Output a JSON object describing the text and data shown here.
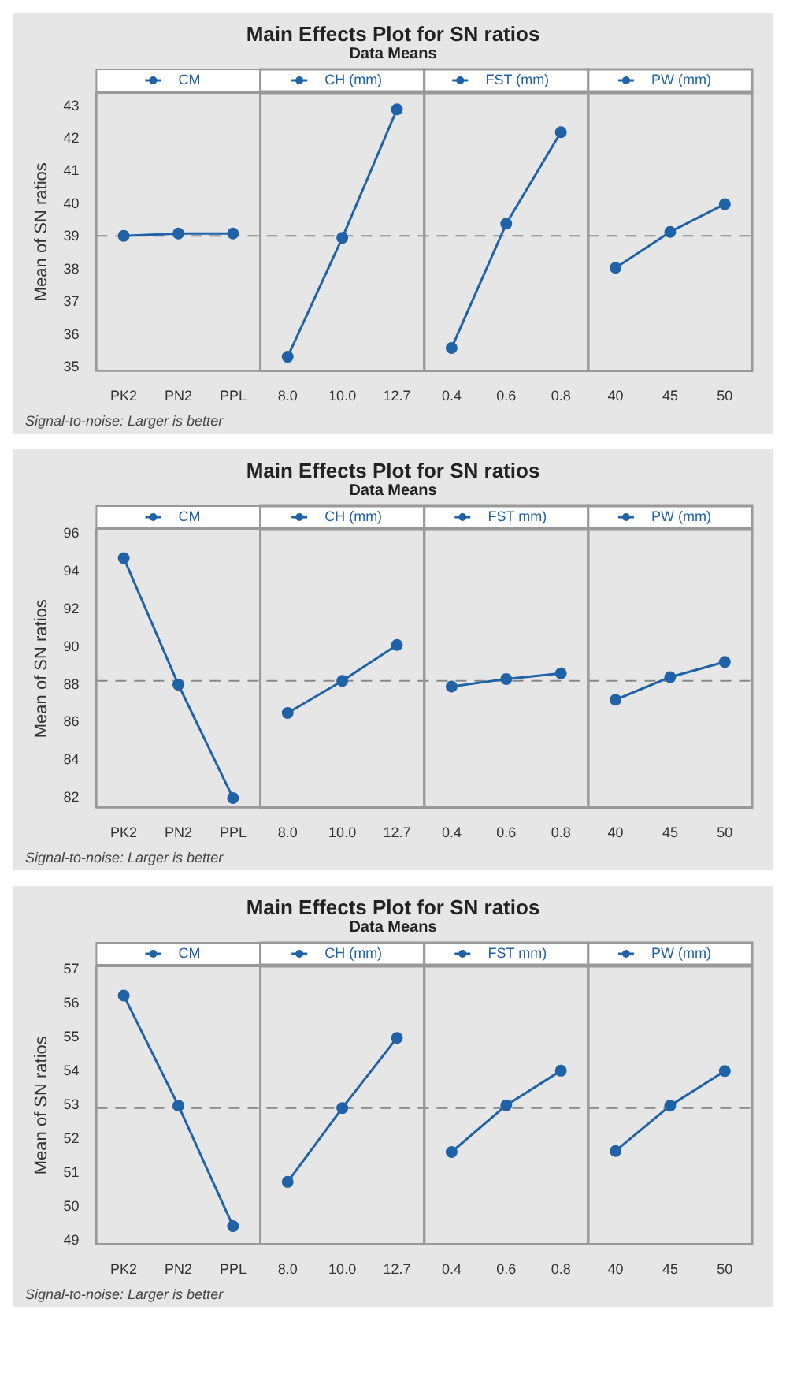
{
  "chart_data": [
    {
      "type": "line",
      "title": "Main Effects Plot for SN ratios",
      "subtitle": "Data Means",
      "ylabel": "Mean of SN ratios",
      "annotations": [
        "Signal-to-noise: Larger is better"
      ],
      "categories": [
        "PK2",
        "PN2",
        "PPL",
        "8.0",
        "10.0",
        "12.7",
        "0.4",
        "0.6",
        "0.8",
        "40",
        "45",
        "50"
      ],
      "series": [
        {
          "name": "CM",
          "color": "#2062a8",
          "values": [
            39.03,
            39.1,
            39.1,
            null,
            null,
            null,
            null,
            null,
            null,
            null,
            null,
            null
          ]
        },
        {
          "name": "CH (mm)",
          "color": "#2062a8",
          "values": [
            null,
            null,
            null,
            35.33,
            38.97,
            42.9,
            null,
            null,
            null,
            null,
            null,
            null
          ]
        },
        {
          "name": "FST (mm)",
          "color": "#2062a8",
          "values": [
            null,
            null,
            null,
            null,
            null,
            null,
            35.6,
            39.4,
            42.2,
            null,
            null,
            null
          ]
        },
        {
          "name": "PW (mm)",
          "color": "#2062a8",
          "values": [
            null,
            null,
            null,
            null,
            null,
            null,
            null,
            null,
            null,
            38.05,
            39.15,
            40.0
          ]
        }
      ],
      "ylim": [
        34.9,
        43.4
      ],
      "yticks": [
        35,
        36,
        37,
        38,
        39,
        40,
        41,
        42,
        43
      ],
      "ref_lines": [
        {
          "axis": "y",
          "value": 39.03,
          "color": "#888888",
          "line_style": "dashed"
        }
      ],
      "marker": "circle",
      "legend": "top"
    },
    {
      "type": "line",
      "title": "Main Effects Plot for SN ratios",
      "subtitle": "Data Means",
      "ylabel": "Mean of SN ratios",
      "annotations": [
        "Signal-to-noise: Larger is better"
      ],
      "categories": [
        "PK2",
        "PN2",
        "PPL",
        "8.0",
        "10.0",
        "12.7",
        "0.4",
        "0.6",
        "0.8",
        "40",
        "45",
        "50"
      ],
      "series": [
        {
          "name": "CM",
          "color": "#2062a8",
          "values": [
            94.7,
            88.0,
            82.0,
            null,
            null,
            null,
            null,
            null,
            null,
            null,
            null,
            null
          ]
        },
        {
          "name": "CH (mm)",
          "color": "#2062a8",
          "values": [
            null,
            null,
            null,
            86.5,
            88.2,
            90.1,
            null,
            null,
            null,
            null,
            null,
            null
          ]
        },
        {
          "name": "FST mm)",
          "color": "#2062a8",
          "values": [
            null,
            null,
            null,
            null,
            null,
            null,
            87.9,
            88.3,
            88.6,
            null,
            null,
            null
          ]
        },
        {
          "name": "PW (mm)",
          "color": "#2062a8",
          "values": [
            null,
            null,
            null,
            null,
            null,
            null,
            null,
            null,
            null,
            87.2,
            88.4,
            89.2
          ]
        }
      ],
      "ylim": [
        81.5,
        96.2
      ],
      "yticks": [
        82,
        84,
        86,
        88,
        90,
        92,
        94,
        96
      ],
      "ref_lines": [
        {
          "axis": "y",
          "value": 88.2,
          "color": "#888888",
          "line_style": "dashed"
        }
      ],
      "marker": "circle",
      "legend": "top"
    },
    {
      "type": "line",
      "title": "Main Effects Plot for SN ratios",
      "subtitle": "Data Means",
      "ylabel": "Mean of SN ratios",
      "annotations": [
        "Signal-to-noise: Larger is better"
      ],
      "categories": [
        "PK2",
        "PN2",
        "PPL",
        "8.0",
        "10.0",
        "12.7",
        "0.4",
        "0.6",
        "0.8",
        "40",
        "45",
        "50"
      ],
      "series": [
        {
          "name": "CM",
          "color": "#2062a8",
          "values": [
            56.24,
            52.99,
            49.43,
            null,
            null,
            null,
            null,
            null,
            null,
            null,
            null,
            null
          ]
        },
        {
          "name": "CH (mm)",
          "color": "#2062a8",
          "values": [
            null,
            null,
            null,
            50.74,
            52.92,
            54.99,
            null,
            null,
            null,
            null,
            null,
            null
          ]
        },
        {
          "name": "FST mm)",
          "color": "#2062a8",
          "values": [
            null,
            null,
            null,
            null,
            null,
            null,
            51.62,
            53.0,
            54.02,
            null,
            null,
            null
          ]
        },
        {
          "name": "PW (mm)",
          "color": "#2062a8",
          "values": [
            null,
            null,
            null,
            null,
            null,
            null,
            null,
            null,
            null,
            51.65,
            52.99,
            54.01
          ]
        }
      ],
      "ylim": [
        48.9,
        57.1
      ],
      "yticks": [
        49,
        50,
        51,
        52,
        53,
        54,
        55,
        56,
        57
      ],
      "ref_lines": [
        {
          "axis": "y",
          "value": 52.92,
          "color": "#888888",
          "line_style": "dashed"
        }
      ],
      "marker": "circle",
      "legend": "top"
    }
  ]
}
